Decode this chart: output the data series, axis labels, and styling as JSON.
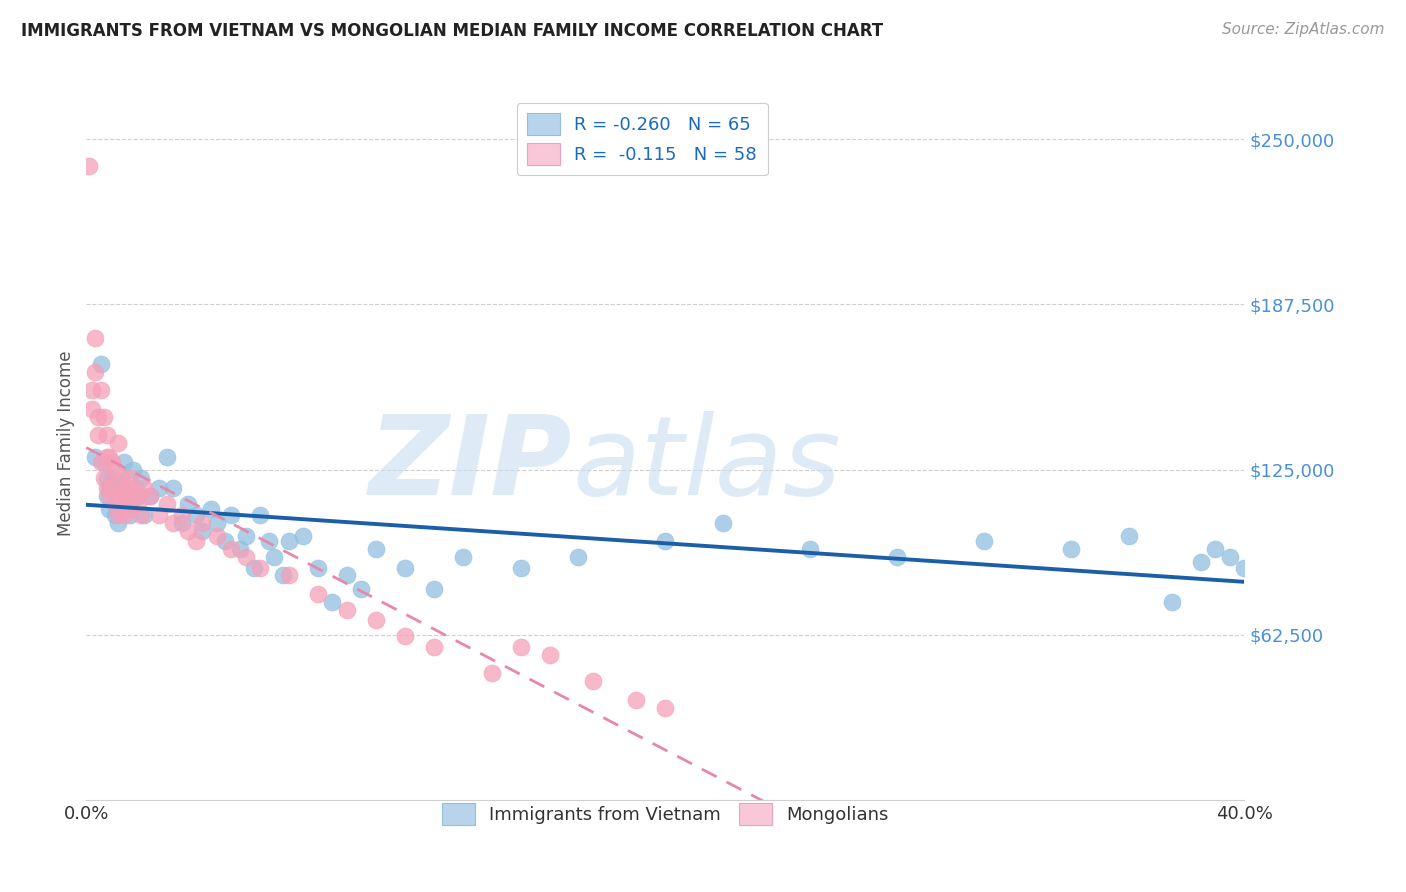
{
  "title": "IMMIGRANTS FROM VIETNAM VS MONGOLIAN MEDIAN FAMILY INCOME CORRELATION CHART",
  "source": "Source: ZipAtlas.com",
  "ylabel": "Median Family Income",
  "ytick_labels": [
    "$62,500",
    "$125,000",
    "$187,500",
    "$250,000"
  ],
  "ytick_values": [
    62500,
    125000,
    187500,
    250000
  ],
  "ymin": 0,
  "ymax": 270000,
  "xmin": 0.0,
  "xmax": 0.4,
  "legend_labels_bottom": [
    "Immigrants from Vietnam",
    "Mongolians"
  ],
  "vietnam_color": "#91bfe0",
  "mongolia_color": "#f5a0b8",
  "vietnam_line_color": "#1a5fa8",
  "mongolia_line_color": "#e888a8",
  "vietnam_points_x": [
    0.003,
    0.005,
    0.006,
    0.007,
    0.007,
    0.008,
    0.008,
    0.009,
    0.01,
    0.01,
    0.011,
    0.011,
    0.012,
    0.013,
    0.014,
    0.015,
    0.015,
    0.016,
    0.017,
    0.018,
    0.019,
    0.02,
    0.022,
    0.025,
    0.028,
    0.03,
    0.033,
    0.035,
    0.038,
    0.04,
    0.043,
    0.045,
    0.048,
    0.05,
    0.053,
    0.055,
    0.058,
    0.06,
    0.063,
    0.065,
    0.068,
    0.07,
    0.075,
    0.08,
    0.085,
    0.09,
    0.095,
    0.1,
    0.11,
    0.12,
    0.13,
    0.15,
    0.17,
    0.2,
    0.22,
    0.25,
    0.28,
    0.31,
    0.34,
    0.36,
    0.375,
    0.385,
    0.39,
    0.395,
    0.4
  ],
  "vietnam_points_y": [
    130000,
    165000,
    128000,
    122000,
    115000,
    118000,
    110000,
    122000,
    117000,
    108000,
    115000,
    105000,
    120000,
    128000,
    115000,
    112000,
    108000,
    125000,
    118000,
    115000,
    122000,
    108000,
    115000,
    118000,
    130000,
    118000,
    105000,
    112000,
    108000,
    102000,
    110000,
    105000,
    98000,
    108000,
    95000,
    100000,
    88000,
    108000,
    98000,
    92000,
    85000,
    98000,
    100000,
    88000,
    75000,
    85000,
    80000,
    95000,
    88000,
    80000,
    92000,
    88000,
    92000,
    98000,
    105000,
    95000,
    92000,
    98000,
    95000,
    100000,
    75000,
    90000,
    95000,
    92000,
    88000
  ],
  "mongolia_points_x": [
    0.001,
    0.002,
    0.002,
    0.003,
    0.003,
    0.004,
    0.004,
    0.005,
    0.005,
    0.006,
    0.006,
    0.007,
    0.007,
    0.007,
    0.008,
    0.008,
    0.009,
    0.009,
    0.01,
    0.01,
    0.011,
    0.011,
    0.012,
    0.012,
    0.013,
    0.013,
    0.014,
    0.015,
    0.015,
    0.016,
    0.017,
    0.018,
    0.019,
    0.02,
    0.022,
    0.025,
    0.028,
    0.03,
    0.033,
    0.035,
    0.038,
    0.04,
    0.045,
    0.05,
    0.055,
    0.06,
    0.07,
    0.08,
    0.09,
    0.1,
    0.11,
    0.12,
    0.14,
    0.15,
    0.16,
    0.175,
    0.19,
    0.2
  ],
  "mongolia_points_y": [
    240000,
    155000,
    148000,
    175000,
    162000,
    145000,
    138000,
    155000,
    128000,
    145000,
    122000,
    138000,
    130000,
    118000,
    130000,
    115000,
    128000,
    118000,
    125000,
    112000,
    135000,
    108000,
    122000,
    115000,
    118000,
    108000,
    115000,
    122000,
    110000,
    118000,
    115000,
    112000,
    108000,
    118000,
    115000,
    108000,
    112000,
    105000,
    108000,
    102000,
    98000,
    105000,
    100000,
    95000,
    92000,
    88000,
    85000,
    78000,
    72000,
    68000,
    62000,
    58000,
    48000,
    58000,
    55000,
    45000,
    38000,
    35000
  ]
}
